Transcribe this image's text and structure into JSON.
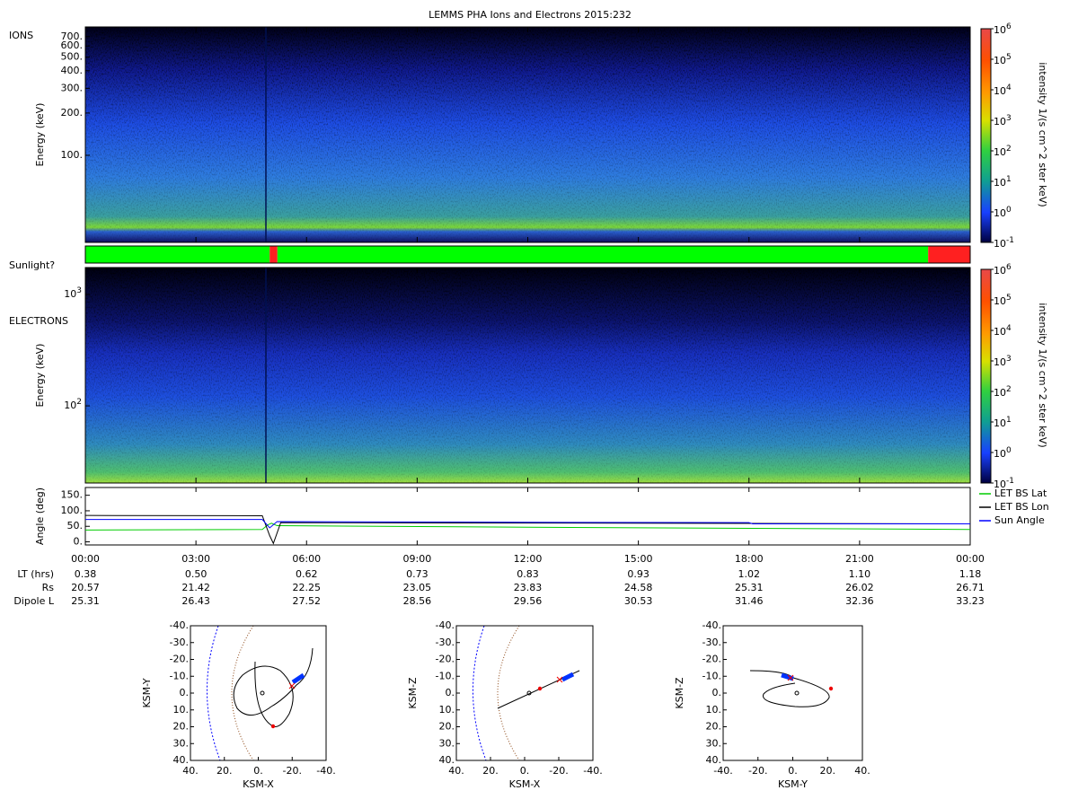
{
  "title": "LEMMS PHA Ions and Electrons  2015:232",
  "ions": {
    "label": "IONS",
    "ylabel": "Energy (keV)",
    "ylim": [
      24,
      820
    ],
    "yticks": [
      {
        "value": 700,
        "label": "700."
      },
      {
        "value": 600,
        "label": "600."
      },
      {
        "value": 500,
        "label": "500."
      },
      {
        "value": 400,
        "label": "400."
      },
      {
        "value": 300,
        "label": "300."
      },
      {
        "value": 200,
        "label": "200."
      },
      {
        "value": 100,
        "label": "100."
      }
    ]
  },
  "electrons": {
    "label": "ELECTRONS",
    "ylabel": "Energy (keV)",
    "ylim": [
      20.3,
      1745
    ],
    "yticks": [
      {
        "value": 1000,
        "label": "10",
        "sup": "3"
      },
      {
        "value": 100,
        "label": "10",
        "sup": "2"
      }
    ]
  },
  "colorbar": {
    "label": "intensity 1/(s cm^2 ster keV)",
    "ylim": [
      -1,
      6
    ],
    "ticks": [
      {
        "value": 6,
        "label": "10",
        "sup": "6"
      },
      {
        "value": 5,
        "label": "10",
        "sup": "5"
      },
      {
        "value": 4,
        "label": "10",
        "sup": "4"
      },
      {
        "value": 3,
        "label": "10",
        "sup": "3"
      },
      {
        "value": 2,
        "label": "10",
        "sup": "2"
      },
      {
        "value": 1,
        "label": "10",
        "sup": "1"
      },
      {
        "value": 0,
        "label": "10",
        "sup": "0"
      },
      {
        "value": -1,
        "label": "10",
        "sup": "-1"
      }
    ]
  },
  "sunlight": {
    "label": "Sunlight?",
    "segments": [
      {
        "start": 0,
        "end": 5.0,
        "color": "#00ff00"
      },
      {
        "start": 5.0,
        "end": 5.21,
        "color": "#ff2020"
      },
      {
        "start": 5.21,
        "end": 22.86,
        "color": "#00ff00"
      },
      {
        "start": 22.86,
        "end": 24,
        "color": "#ff2020"
      }
    ]
  },
  "angle": {
    "ylabel": "Angle (deg)",
    "xlim": [
      0,
      24
    ],
    "ylim": [
      -10,
      175
    ],
    "yticks": [
      {
        "value": 150,
        "label": "150."
      },
      {
        "value": 100,
        "label": "100."
      },
      {
        "value": 50,
        "label": "50."
      },
      {
        "value": 0,
        "label": "0."
      }
    ],
    "series": [
      {
        "name": "LET BS Lat",
        "color": "#00cc00",
        "x": [
          0,
          4.8,
          4.95,
          5.05,
          5.2,
          12,
          24
        ],
        "values": [
          38,
          40,
          55,
          60,
          52,
          47,
          40
        ]
      },
      {
        "name": "LET BS Lon",
        "color": "#000000",
        "x": [
          0,
          4.8,
          5.0,
          5.1,
          5.3,
          24
        ],
        "values": [
          85,
          84,
          20,
          -5,
          62,
          58
        ]
      },
      {
        "name": "Sun Angle",
        "color": "#0000ff",
        "x": [
          0,
          4.8,
          5.0,
          5.2,
          12,
          18,
          18.1,
          24
        ],
        "values": [
          72,
          72,
          45,
          65,
          63,
          62,
          58,
          58
        ]
      }
    ]
  },
  "time_axis": {
    "xticks": [
      {
        "value": 0,
        "label": "00:00"
      },
      {
        "value": 3,
        "label": "03:00"
      },
      {
        "value": 6,
        "label": "06:00"
      },
      {
        "value": 9,
        "label": "09:00"
      },
      {
        "value": 12,
        "label": "12:00"
      },
      {
        "value": 15,
        "label": "15:00"
      },
      {
        "value": 18,
        "label": "18:00"
      },
      {
        "value": 21,
        "label": "21:00"
      },
      {
        "value": 24,
        "label": "00:00"
      }
    ],
    "rows": [
      {
        "label": "LT (hrs)",
        "values": [
          "0.38",
          "0.50",
          "0.62",
          "0.73",
          "0.83",
          "0.93",
          "1.02",
          "1.10",
          "1.18"
        ]
      },
      {
        "label": "Rs",
        "values": [
          "20.57",
          "21.42",
          "22.25",
          "23.05",
          "23.83",
          "24.58",
          "25.31",
          "26.02",
          "26.71"
        ]
      },
      {
        "label": "Dipole L",
        "values": [
          "25.31",
          "26.43",
          "27.52",
          "28.56",
          "29.56",
          "30.53",
          "31.46",
          "32.36",
          "33.23"
        ]
      }
    ]
  },
  "orbits": [
    {
      "xlabel": "KSM-X",
      "ylabel": "KSM-Y",
      "xlim": [
        40,
        -40
      ],
      "ylim": [
        40,
        -40
      ],
      "xticks": [
        {
          "value": 40,
          "label": "40."
        },
        {
          "value": 20,
          "label": "20."
        },
        {
          "value": 0,
          "label": "0."
        },
        {
          "value": -20,
          "label": "-20."
        },
        {
          "value": -40,
          "label": "-40."
        }
      ],
      "yticks": [
        {
          "value": -40,
          "label": "-40."
        },
        {
          "value": -30,
          "label": "-30."
        },
        {
          "value": -20,
          "label": "-20."
        },
        {
          "value": -10,
          "label": "-10."
        },
        {
          "value": 0,
          "label": "0."
        },
        {
          "value": 10,
          "label": "10."
        },
        {
          "value": 20,
          "label": "20."
        },
        {
          "value": 30,
          "label": "30."
        },
        {
          "value": 40,
          "label": "40."
        }
      ]
    },
    {
      "xlabel": "KSM-X",
      "ylabel": "KSM-Z",
      "xlim": [
        40,
        -40
      ],
      "ylim": [
        40,
        -40
      ],
      "xticks": [
        {
          "value": 40,
          "label": "40."
        },
        {
          "value": 20,
          "label": "20."
        },
        {
          "value": 0,
          "label": "0."
        },
        {
          "value": -20,
          "label": "-20."
        },
        {
          "value": -40,
          "label": "-40."
        }
      ],
      "yticks": [
        {
          "value": -40,
          "label": "-40."
        },
        {
          "value": -30,
          "label": "-30."
        },
        {
          "value": -20,
          "label": "-20."
        },
        {
          "value": -10,
          "label": "-10."
        },
        {
          "value": 0,
          "label": "0."
        },
        {
          "value": 10,
          "label": "10."
        },
        {
          "value": 20,
          "label": "20."
        },
        {
          "value": 30,
          "label": "30."
        },
        {
          "value": 40,
          "label": "40."
        }
      ]
    },
    {
      "xlabel": "KSM-Y",
      "ylabel": "KSM-Z",
      "xlim": [
        -40,
        40
      ],
      "ylim": [
        40,
        -40
      ],
      "xticks": [
        {
          "value": -40,
          "label": "-40."
        },
        {
          "value": -20,
          "label": "-20."
        },
        {
          "value": 0,
          "label": "0."
        },
        {
          "value": 20,
          "label": "20."
        },
        {
          "value": 40,
          "label": "40."
        }
      ],
      "yticks": [
        {
          "value": -40,
          "label": "-40."
        },
        {
          "value": -30,
          "label": "-30."
        },
        {
          "value": -20,
          "label": "-20."
        },
        {
          "value": -10,
          "label": "-10."
        },
        {
          "value": 0,
          "label": "0."
        },
        {
          "value": 10,
          "label": "10."
        },
        {
          "value": 20,
          "label": "20."
        },
        {
          "value": 30,
          "label": "30."
        },
        {
          "value": 40,
          "label": "40."
        }
      ]
    }
  ]
}
